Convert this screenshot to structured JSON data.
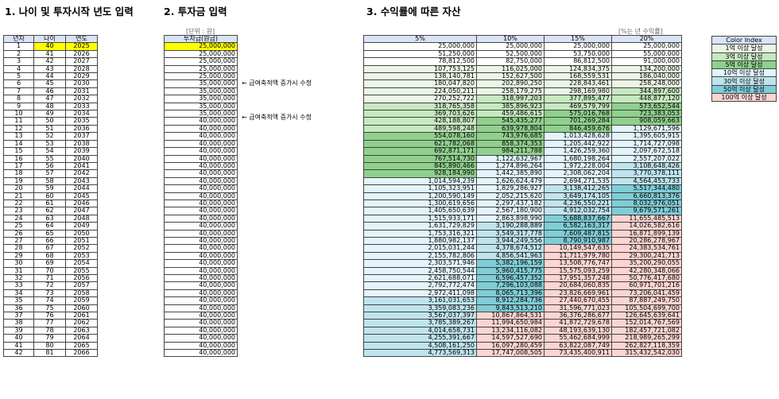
{
  "sections": {
    "s1_title": "1. 나이 및 투자시작 년도 입력",
    "s2_title": "2. 투자금 입력",
    "s3_title": "3. 수익률에 따른 자산"
  },
  "units_label": "[단위 : 원]",
  "yield_note": "[%는 년 수익률]",
  "table1": {
    "headers": [
      "년차",
      "나이",
      "연도"
    ],
    "start_age": "40",
    "start_year": "2025"
  },
  "table2": {
    "header": "투자금(원금)"
  },
  "notes": [
    {
      "row": 6,
      "text": "← 급여축적액 증가시 수정"
    },
    {
      "row": 11,
      "text": "← 급여축적액 증가시 수정"
    }
  ],
  "table3": {
    "headers": [
      "5%",
      "10%",
      "15%",
      "20%"
    ]
  },
  "colors": {
    "header": "#d9e4f7",
    "input": "#ffff00",
    "tier1": "#ebf6e6",
    "tier3": "#c6e9bf",
    "tier5": "#8fd08c",
    "tier10": "#e3f4fb",
    "tier30": "#bfe4ee",
    "tier50": "#7fcdd6",
    "tier100": "#fcd5d2"
  },
  "legend": {
    "title": "Color Index",
    "items": [
      {
        "label": "1억 이상 달성",
        "tier": "tier1"
      },
      {
        "label": "3억 이상 달성",
        "tier": "tier3"
      },
      {
        "label": "5억 이상 달성",
        "tier": "tier5"
      },
      {
        "label": "10억 이상 달성",
        "tier": "tier10"
      },
      {
        "label": "30억 이상 달성",
        "tier": "tier30"
      },
      {
        "label": "50억 이상 달성",
        "tier": "tier50"
      },
      {
        "label": "100억 이상 달성",
        "tier": "tier100"
      }
    ]
  },
  "rows": [
    {
      "n": "1",
      "age": "40",
      "year": "2025",
      "principal": "25,000,000",
      "v5": "25,000,000",
      "v10": "25,000,000",
      "v15": "25,000,000",
      "v20": "25,000,000"
    },
    {
      "n": "2",
      "age": "41",
      "year": "2026",
      "principal": "25,000,000",
      "v5": "51,250,000",
      "v10": "52,500,000",
      "v15": "53,750,000",
      "v20": "55,000,000"
    },
    {
      "n": "3",
      "age": "42",
      "year": "2027",
      "principal": "25,000,000",
      "v5": "78,812,500",
      "v10": "82,750,000",
      "v15": "86,812,500",
      "v20": "91,000,000"
    },
    {
      "n": "4",
      "age": "43",
      "year": "2028",
      "principal": "25,000,000",
      "v5": "107,753,125",
      "v10": "116,025,000",
      "v15": "124,834,375",
      "v20": "134,200,000"
    },
    {
      "n": "5",
      "age": "44",
      "year": "2029",
      "principal": "25,000,000",
      "v5": "138,140,781",
      "v10": "152,627,500",
      "v15": "168,559,531",
      "v20": "186,040,000"
    },
    {
      "n": "6",
      "age": "45",
      "year": "2030",
      "principal": "35,000,000",
      "v5": "180,047,820",
      "v10": "202,890,250",
      "v15": "228,843,461",
      "v20": "258,248,000"
    },
    {
      "n": "7",
      "age": "46",
      "year": "2031",
      "principal": "35,000,000",
      "v5": "224,050,211",
      "v10": "258,179,275",
      "v15": "298,169,980",
      "v20": "344,897,600"
    },
    {
      "n": "8",
      "age": "47",
      "year": "2032",
      "principal": "35,000,000",
      "v5": "270,252,722",
      "v10": "318,997,203",
      "v15": "377,895,477",
      "v20": "448,877,120"
    },
    {
      "n": "9",
      "age": "48",
      "year": "2033",
      "principal": "35,000,000",
      "v5": "318,765,358",
      "v10": "385,896,923",
      "v15": "469,579,799",
      "v20": "573,652,544"
    },
    {
      "n": "10",
      "age": "49",
      "year": "2034",
      "principal": "35,000,000",
      "v5": "369,703,626",
      "v10": "459,486,615",
      "v15": "575,016,768",
      "v20": "723,383,053"
    },
    {
      "n": "11",
      "age": "50",
      "year": "2035",
      "principal": "40,000,000",
      "v5": "428,188,807",
      "v10": "545,435,277",
      "v15": "701,269,284",
      "v20": "908,059,663"
    },
    {
      "n": "12",
      "age": "51",
      "year": "2036",
      "principal": "40,000,000",
      "v5": "489,598,248",
      "v10": "639,978,804",
      "v15": "846,459,676",
      "v20": "1,129,671,596"
    },
    {
      "n": "13",
      "age": "52",
      "year": "2037",
      "principal": "40,000,000",
      "v5": "554,078,160",
      "v10": "743,976,685",
      "v15": "1,013,428,628",
      "v20": "1,395,605,915"
    },
    {
      "n": "14",
      "age": "53",
      "year": "2038",
      "principal": "40,000,000",
      "v5": "621,782,068",
      "v10": "858,374,353",
      "v15": "1,205,442,922",
      "v20": "1,714,727,098"
    },
    {
      "n": "15",
      "age": "54",
      "year": "2039",
      "principal": "40,000,000",
      "v5": "692,871,171",
      "v10": "984,211,788",
      "v15": "1,426,259,360",
      "v20": "2,097,672,518"
    },
    {
      "n": "16",
      "age": "55",
      "year": "2040",
      "principal": "40,000,000",
      "v5": "767,514,730",
      "v10": "1,122,632,967",
      "v15": "1,680,198,264",
      "v20": "2,557,207,022"
    },
    {
      "n": "17",
      "age": "56",
      "year": "2041",
      "principal": "40,000,000",
      "v5": "845,890,466",
      "v10": "1,274,896,264",
      "v15": "1,972,228,004",
      "v20": "3,108,648,426"
    },
    {
      "n": "18",
      "age": "57",
      "year": "2042",
      "principal": "40,000,000",
      "v5": "928,184,990",
      "v10": "1,442,385,890",
      "v15": "2,308,062,204",
      "v20": "3,770,378,111"
    },
    {
      "n": "19",
      "age": "58",
      "year": "2043",
      "principal": "40,000,000",
      "v5": "1,014,594,239",
      "v10": "1,626,624,479",
      "v15": "2,694,271,535",
      "v20": "4,564,453,733"
    },
    {
      "n": "20",
      "age": "59",
      "year": "2044",
      "principal": "40,000,000",
      "v5": "1,105,323,951",
      "v10": "1,829,286,927",
      "v15": "3,138,412,265",
      "v20": "5,517,344,480"
    },
    {
      "n": "21",
      "age": "60",
      "year": "2045",
      "principal": "40,000,000",
      "v5": "1,200,590,149",
      "v10": "2,052,215,620",
      "v15": "3,649,174,105",
      "v20": "6,660,813,376"
    },
    {
      "n": "22",
      "age": "61",
      "year": "2046",
      "principal": "40,000,000",
      "v5": "1,300,619,656",
      "v10": "2,297,437,182",
      "v15": "4,236,550,221",
      "v20": "8,032,976,051"
    },
    {
      "n": "23",
      "age": "62",
      "year": "2047",
      "principal": "40,000,000",
      "v5": "1,405,650,639",
      "v10": "2,567,180,900",
      "v15": "4,912,032,754",
      "v20": "9,679,571,261"
    },
    {
      "n": "24",
      "age": "63",
      "year": "2048",
      "principal": "40,000,000",
      "v5": "1,515,933,171",
      "v10": "2,863,898,990",
      "v15": "5,688,837,667",
      "v20": "11,655,485,513"
    },
    {
      "n": "25",
      "age": "64",
      "year": "2049",
      "principal": "40,000,000",
      "v5": "1,631,729,829",
      "v10": "3,190,288,889",
      "v15": "6,582,163,317",
      "v20": "14,026,582,616"
    },
    {
      "n": "26",
      "age": "65",
      "year": "2050",
      "principal": "40,000,000",
      "v5": "1,753,316,321",
      "v10": "3,549,317,778",
      "v15": "7,609,487,815",
      "v20": "16,871,899,139"
    },
    {
      "n": "27",
      "age": "66",
      "year": "2051",
      "principal": "40,000,000",
      "v5": "1,880,982,137",
      "v10": "3,944,249,556",
      "v15": "8,790,910,987",
      "v20": "20,286,278,967"
    },
    {
      "n": "28",
      "age": "67",
      "year": "2052",
      "principal": "40,000,000",
      "v5": "2,015,031,244",
      "v10": "4,378,674,512",
      "v15": "10,149,547,635",
      "v20": "24,383,534,761"
    },
    {
      "n": "29",
      "age": "68",
      "year": "2053",
      "principal": "40,000,000",
      "v5": "2,155,782,806",
      "v10": "4,856,541,963",
      "v15": "11,711,979,780",
      "v20": "29,300,241,713"
    },
    {
      "n": "30",
      "age": "69",
      "year": "2054",
      "principal": "40,000,000",
      "v5": "2,303,571,946",
      "v10": "5,382,196,159",
      "v15": "13,508,776,747",
      "v20": "35,200,290,055"
    },
    {
      "n": "31",
      "age": "70",
      "year": "2055",
      "principal": "40,000,000",
      "v5": "2,458,750,544",
      "v10": "5,960,415,775",
      "v15": "15,575,093,259",
      "v20": "42,280,348,066"
    },
    {
      "n": "32",
      "age": "71",
      "year": "2056",
      "principal": "40,000,000",
      "v5": "2,621,688,071",
      "v10": "6,596,457,352",
      "v15": "17,951,357,248",
      "v20": "50,776,417,680"
    },
    {
      "n": "33",
      "age": "72",
      "year": "2057",
      "principal": "40,000,000",
      "v5": "2,792,772,474",
      "v10": "7,296,103,088",
      "v15": "20,684,060,835",
      "v20": "60,971,701,216"
    },
    {
      "n": "34",
      "age": "73",
      "year": "2058",
      "principal": "40,000,000",
      "v5": "2,972,411,098",
      "v10": "8,065,713,396",
      "v15": "23,826,669,961",
      "v20": "73,206,041,459"
    },
    {
      "n": "35",
      "age": "74",
      "year": "2059",
      "principal": "40,000,000",
      "v5": "3,161,031,653",
      "v10": "8,912,284,736",
      "v15": "27,440,670,455",
      "v20": "87,887,249,750"
    },
    {
      "n": "36",
      "age": "75",
      "year": "2060",
      "principal": "40,000,000",
      "v5": "3,359,083,236",
      "v10": "9,843,513,210",
      "v15": "31,596,771,023",
      "v20": "105,504,699,700"
    },
    {
      "n": "37",
      "age": "76",
      "year": "2061",
      "principal": "40,000,000",
      "v5": "3,567,037,397",
      "v10": "10,867,864,531",
      "v15": "36,376,286,677",
      "v20": "126,645,639,641"
    },
    {
      "n": "38",
      "age": "77",
      "year": "2062",
      "principal": "40,000,000",
      "v5": "3,785,389,267",
      "v10": "11,994,650,984",
      "v15": "41,872,729,678",
      "v20": "152,014,767,569"
    },
    {
      "n": "39",
      "age": "78",
      "year": "2063",
      "principal": "40,000,000",
      "v5": "4,014,658,731",
      "v10": "13,234,116,082",
      "v15": "48,193,639,130",
      "v20": "182,457,721,082"
    },
    {
      "n": "40",
      "age": "79",
      "year": "2064",
      "principal": "40,000,000",
      "v5": "4,255,391,667",
      "v10": "14,597,527,690",
      "v15": "55,462,684,999",
      "v20": "218,989,265,299"
    },
    {
      "n": "41",
      "age": "80",
      "year": "2065",
      "principal": "40,000,000",
      "v5": "4,508,161,250",
      "v10": "16,097,280,459",
      "v15": "63,822,087,749",
      "v20": "262,827,118,359"
    },
    {
      "n": "42",
      "age": "81",
      "year": "2066",
      "principal": "40,000,000",
      "v5": "4,773,569,313",
      "v10": "17,747,008,505",
      "v15": "73,435,400,911",
      "v20": "315,432,542,030"
    }
  ]
}
